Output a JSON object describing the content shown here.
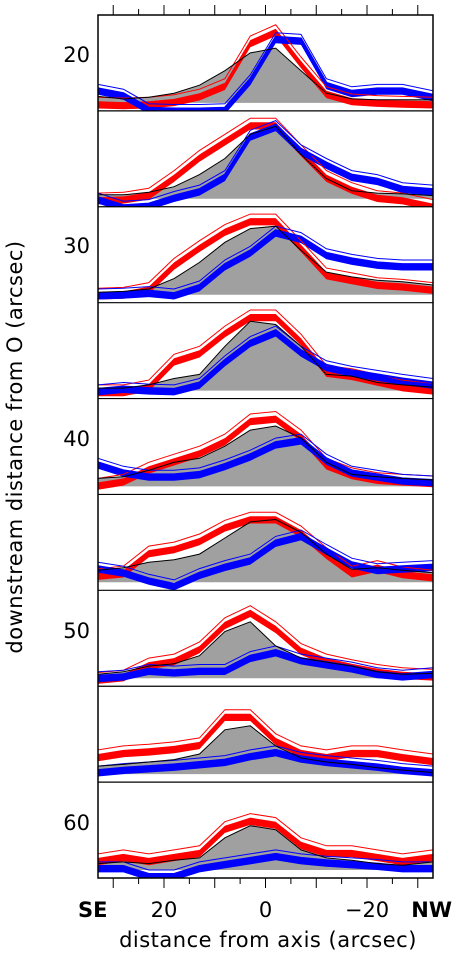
{
  "chart_data": {
    "type": "area",
    "xlabel": "distance from axis (arcsec)",
    "ylabel": "downstream distance from O (arcsec)",
    "x_ticks": [
      {
        "value": 20,
        "label": "20"
      },
      {
        "value": 0,
        "label": "0"
      },
      {
        "value": -20,
        "label": "−20"
      }
    ],
    "x_edge_labels": {
      "left": "SE",
      "right": "NW"
    },
    "xlim": [
      33,
      -33
    ],
    "x": [
      33,
      28,
      23,
      18,
      13,
      8,
      3,
      -2,
      -7,
      -12,
      -17,
      -22,
      -27,
      -33
    ],
    "panel_tick_labels": [
      "20",
      "30",
      "40",
      "50",
      "60"
    ],
    "panels": [
      {
        "d": 20,
        "gray": [
          0.08,
          0.05,
          0.07,
          0.12,
          0.22,
          0.4,
          0.62,
          0.68,
          0.4,
          0.12,
          0.05,
          0.04,
          0.04,
          0.04
        ],
        "red": [
          0.02,
          0.01,
          0.02,
          0.05,
          0.12,
          0.25,
          0.78,
          0.92,
          0.52,
          0.15,
          0.06,
          0.04,
          0.03,
          0.02
        ],
        "blue": [
          0.18,
          0.12,
          -0.06,
          -0.07,
          -0.07,
          -0.06,
          0.3,
          0.82,
          0.8,
          0.25,
          0.15,
          0.18,
          0.18,
          0.1
        ]
      },
      {
        "d": 25,
        "gray": [
          0.05,
          0.05,
          0.08,
          0.15,
          0.3,
          0.5,
          0.8,
          0.9,
          0.55,
          0.25,
          0.1,
          0.07,
          0.06,
          0.04
        ],
        "red": [
          0.02,
          0.03,
          0.08,
          0.3,
          0.55,
          0.75,
          0.95,
          0.95,
          0.62,
          0.3,
          0.15,
          0.05,
          0.02,
          -0.06
        ],
        "blue": [
          0.02,
          -0.08,
          -0.06,
          0.04,
          0.12,
          0.3,
          0.8,
          0.92,
          0.62,
          0.45,
          0.3,
          0.25,
          0.15,
          0.12
        ]
      },
      {
        "d": 30,
        "gray": [
          0.03,
          0.04,
          0.07,
          0.2,
          0.4,
          0.65,
          0.82,
          0.85,
          0.55,
          0.28,
          0.22,
          0.18,
          0.16,
          0.12
        ],
        "red": [
          0.03,
          0.04,
          0.1,
          0.4,
          0.62,
          0.82,
          0.95,
          0.95,
          0.62,
          0.28,
          0.22,
          0.16,
          0.14,
          0.1
        ],
        "blue": [
          0.02,
          0.03,
          0.05,
          0.02,
          0.12,
          0.38,
          0.55,
          0.8,
          0.72,
          0.52,
          0.45,
          0.4,
          0.38,
          0.38
        ]
      },
      {
        "d": 35,
        "gray": [
          0.03,
          0.03,
          0.07,
          0.15,
          0.2,
          0.55,
          0.86,
          0.82,
          0.55,
          0.2,
          0.18,
          0.1,
          0.07,
          0.04
        ],
        "red": [
          0.02,
          0.02,
          0.08,
          0.4,
          0.5,
          0.75,
          0.95,
          0.95,
          0.65,
          0.26,
          0.22,
          0.15,
          0.08,
          0.04
        ],
        "blue": [
          0.02,
          0.05,
          0.03,
          0.02,
          0.1,
          0.38,
          0.62,
          0.75,
          0.5,
          0.32,
          0.25,
          0.2,
          0.15,
          0.1
        ]
      },
      {
        "d": 40,
        "gray": [
          0.1,
          0.12,
          0.2,
          0.3,
          0.35,
          0.5,
          0.7,
          0.75,
          0.6,
          0.3,
          0.15,
          0.12,
          0.1,
          0.08
        ],
        "red": [
          0.05,
          0.1,
          0.25,
          0.35,
          0.45,
          0.6,
          0.85,
          0.88,
          0.65,
          0.3,
          0.18,
          0.12,
          0.1,
          0.08
        ],
        "blue": [
          0.3,
          0.2,
          0.15,
          0.15,
          0.18,
          0.28,
          0.4,
          0.55,
          0.6,
          0.35,
          0.2,
          0.15,
          0.1,
          0.08
        ]
      },
      {
        "d": 45,
        "gray": [
          0.15,
          0.18,
          0.25,
          0.28,
          0.35,
          0.55,
          0.75,
          0.78,
          0.62,
          0.35,
          0.16,
          0.18,
          0.15,
          0.12
        ],
        "red": [
          0.12,
          0.15,
          0.4,
          0.45,
          0.55,
          0.72,
          0.82,
          0.82,
          0.65,
          0.38,
          0.15,
          0.22,
          0.14,
          0.1
        ],
        "blue": [
          0.2,
          0.15,
          0.05,
          -0.02,
          0.12,
          0.22,
          0.3,
          0.52,
          0.6,
          0.42,
          0.25,
          0.18,
          0.2,
          0.22
        ]
      },
      {
        "d": 50,
        "gray": [
          0.05,
          0.08,
          0.15,
          0.18,
          0.28,
          0.58,
          0.7,
          0.4,
          0.25,
          0.2,
          0.15,
          0.08,
          0.05,
          0.06
        ],
        "red": [
          0.02,
          0.05,
          0.2,
          0.25,
          0.4,
          0.7,
          0.85,
          0.65,
          0.38,
          0.25,
          0.18,
          0.12,
          0.08,
          0.06
        ],
        "blue": [
          0.03,
          0.05,
          0.12,
          0.1,
          0.12,
          0.12,
          0.28,
          0.35,
          0.25,
          0.2,
          0.15,
          0.08,
          0.05,
          0.08
        ]
      },
      {
        "d": 55,
        "gray": [
          0.1,
          0.12,
          0.15,
          0.18,
          0.25,
          0.55,
          0.6,
          0.35,
          0.2,
          0.15,
          0.12,
          0.08,
          0.05,
          0.02
        ],
        "red": [
          0.25,
          0.3,
          0.32,
          0.35,
          0.4,
          0.75,
          0.75,
          0.45,
          0.3,
          0.25,
          0.3,
          0.3,
          0.25,
          0.2
        ],
        "blue": [
          0.05,
          0.08,
          0.1,
          0.12,
          0.15,
          0.18,
          0.25,
          0.3,
          0.22,
          0.18,
          0.15,
          0.12,
          0.08,
          0.05
        ]
      },
      {
        "d": 60,
        "gray": [
          0.08,
          0.1,
          0.08,
          0.12,
          0.15,
          0.4,
          0.55,
          0.5,
          0.25,
          0.15,
          0.12,
          0.08,
          0.06,
          0.1
        ],
        "red": [
          0.15,
          0.2,
          0.15,
          0.2,
          0.25,
          0.55,
          0.65,
          0.6,
          0.35,
          0.25,
          0.25,
          0.2,
          0.15,
          0.2
        ],
        "blue": [
          0.05,
          0.05,
          -0.05,
          -0.05,
          0.05,
          0.1,
          0.15,
          0.2,
          0.15,
          0.12,
          0.1,
          0.08,
          0.05,
          0.05
        ]
      }
    ],
    "colors": {
      "gray": "#a0a0a0",
      "red": "#ff0000",
      "blue": "#0000ff",
      "frame": "#000000"
    }
  }
}
